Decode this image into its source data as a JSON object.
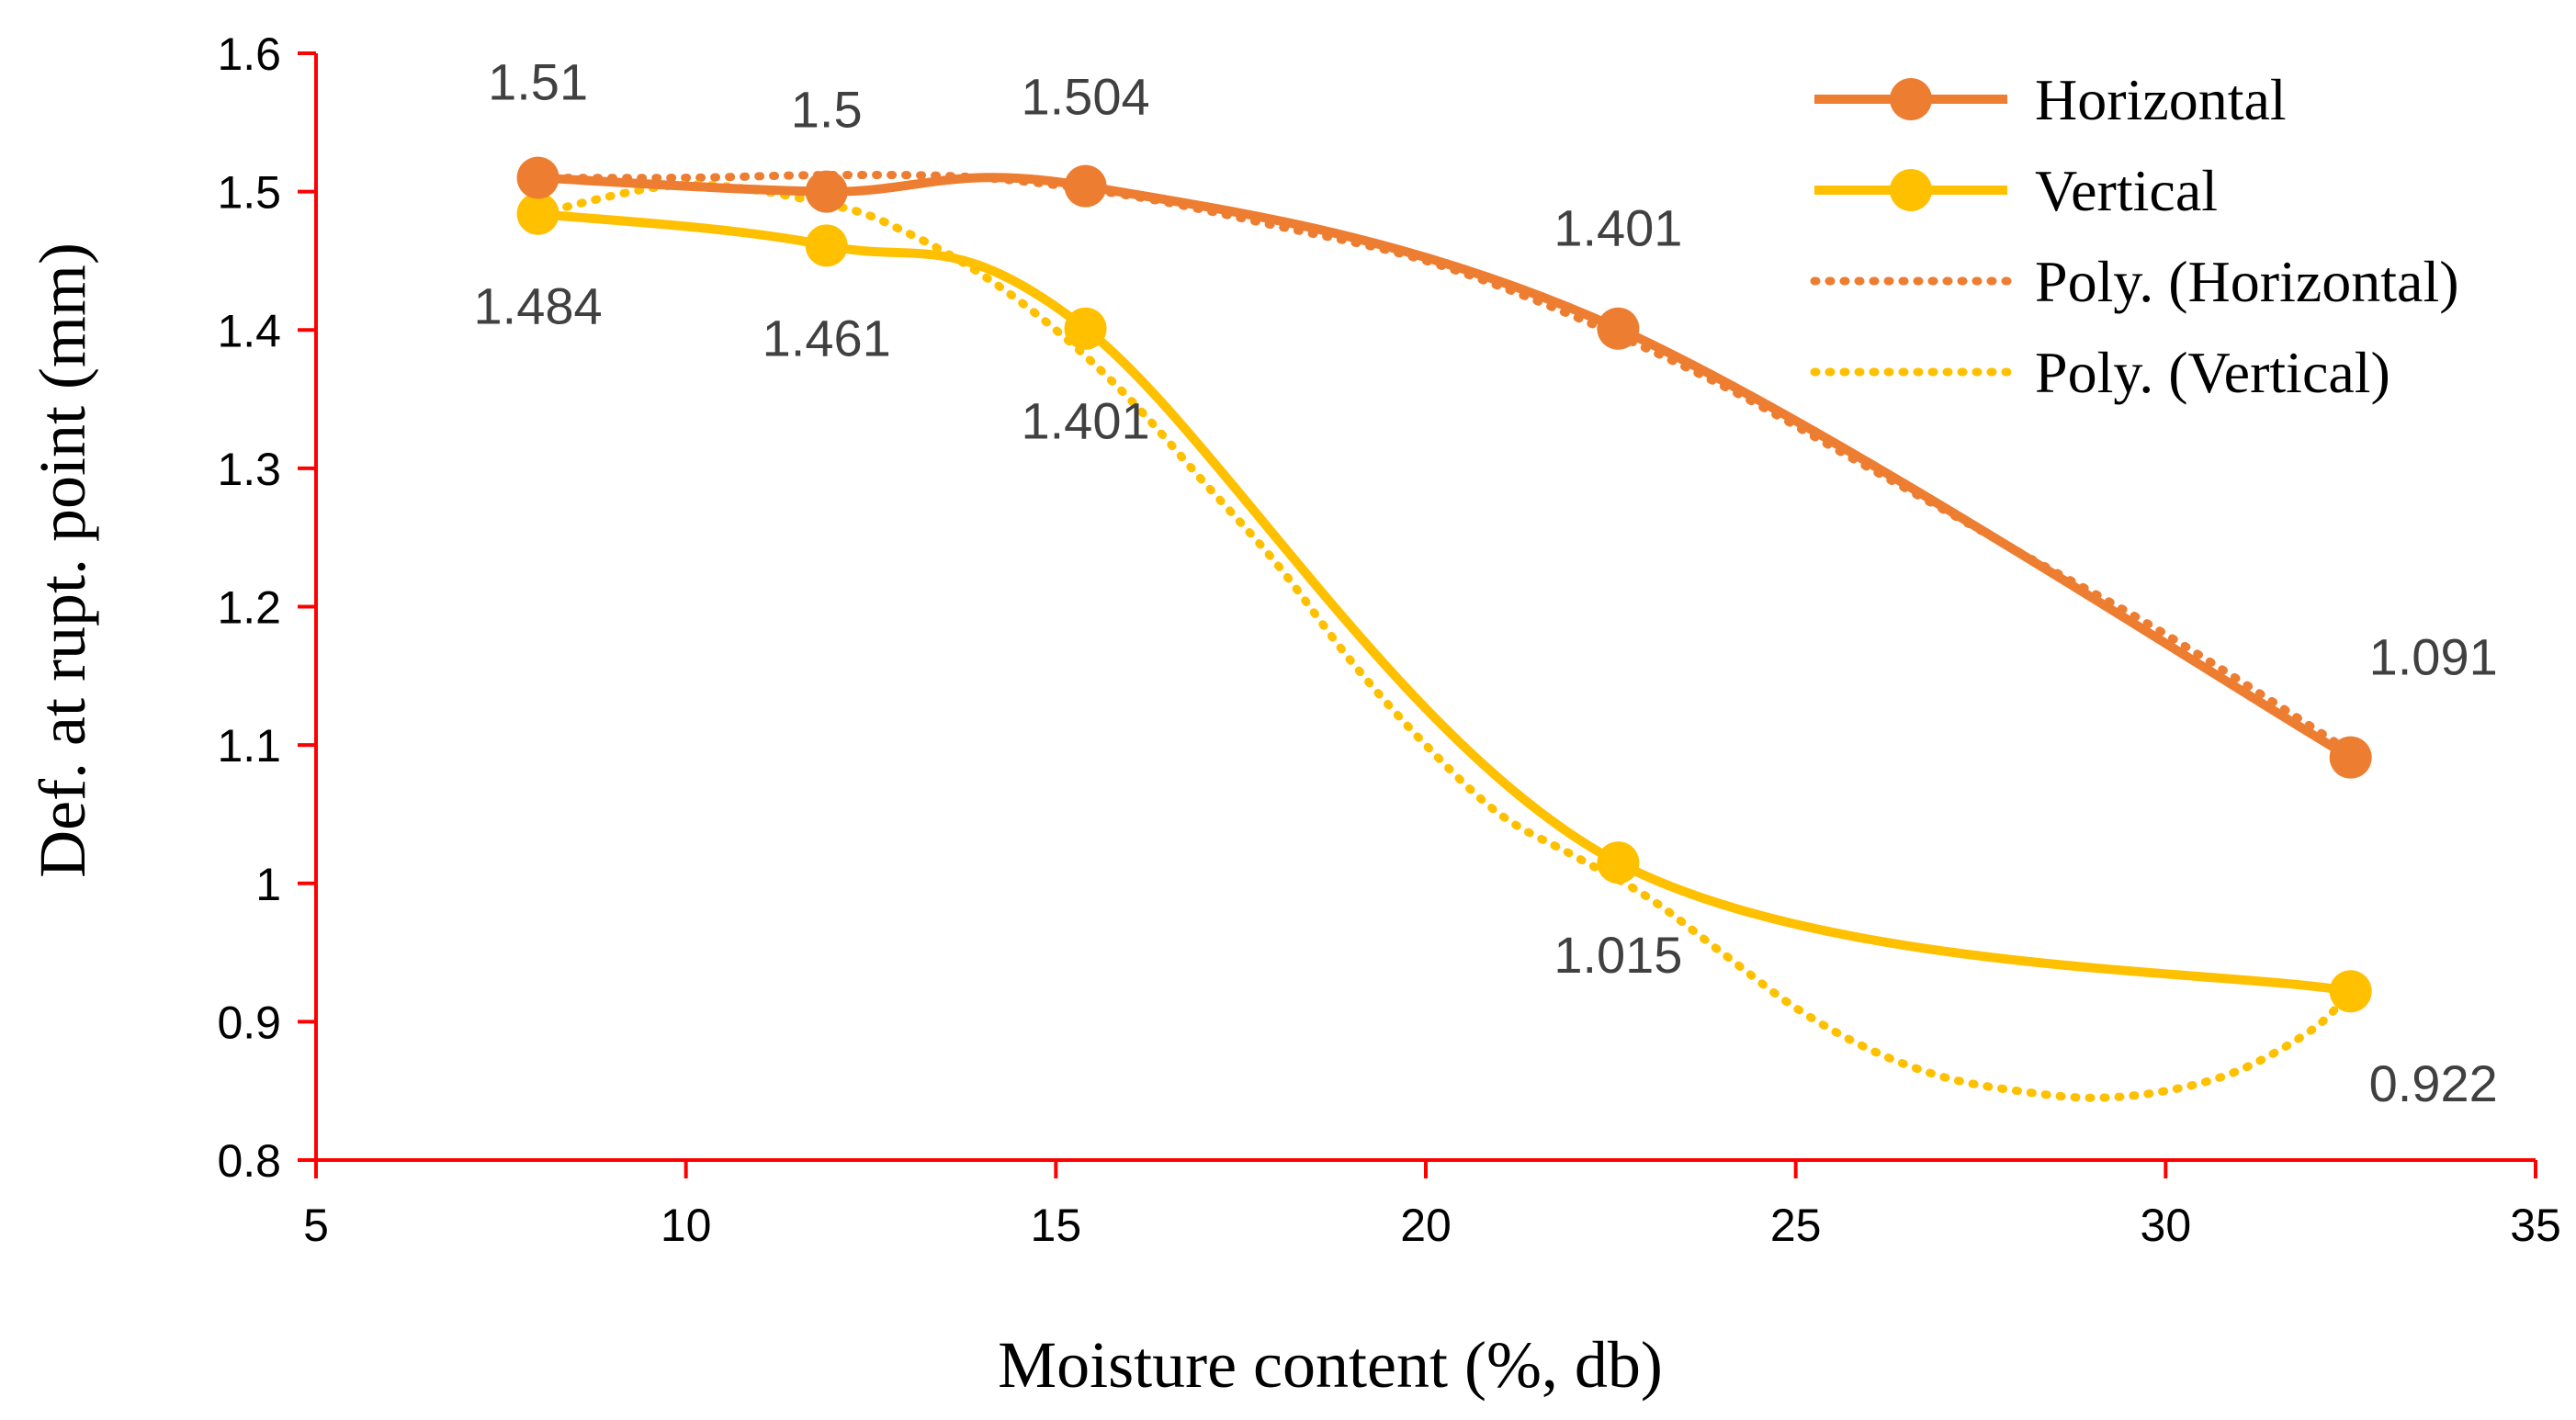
{
  "chart_data": {
    "type": "line",
    "title": "",
    "xlabel": "Moisture content (%, db)",
    "ylabel": "Def. at rupt. point (mm)",
    "xlim": [
      5,
      35
    ],
    "ylim": [
      0.8,
      1.6
    ],
    "xticks": [
      "5",
      "10",
      "15",
      "20",
      "25",
      "30",
      "35"
    ],
    "yticks": [
      "0.8",
      "0.9",
      "1",
      "1.1",
      "1.2",
      "1.3",
      "1.4",
      "1.5",
      "1.6"
    ],
    "axis_color": "#ff0000",
    "legend_position": "top-right",
    "grid": false,
    "x": [
      8,
      11.9,
      15.4,
      22.6,
      32.5
    ],
    "series": [
      {
        "name": "Horizontal",
        "color": "#ed7d31",
        "values": [
          1.51,
          1.5,
          1.504,
          1.401,
          1.091
        ],
        "labels": [
          "1.51",
          "1.5",
          "1.504",
          "1.401",
          "1.091"
        ],
        "label_position": "above"
      },
      {
        "name": "Vertical",
        "color": "#ffc000",
        "values": [
          1.484,
          1.461,
          1.401,
          1.015,
          0.922
        ],
        "labels": [
          "1.484",
          "1.461",
          "1.401",
          "1.015",
          "0.922"
        ],
        "label_position": "below"
      }
    ],
    "trendlines": [
      {
        "name": "Poly. (Horizontal)",
        "color": "#ed7d31",
        "style": "dotted",
        "x": [
          8,
          10,
          12,
          14,
          16,
          18,
          20,
          22,
          24,
          26,
          28,
          30,
          32.5
        ],
        "values": [
          1.51,
          1.51,
          1.512,
          1.51,
          1.497,
          1.475,
          1.45,
          1.41,
          1.36,
          1.3,
          1.24,
          1.18,
          1.095
        ]
      },
      {
        "name": "Poly. (Vertical)",
        "color": "#ffc000",
        "style": "dotted",
        "x": [
          8,
          10,
          12,
          13,
          14,
          15,
          16,
          17,
          18,
          19,
          20,
          21,
          22,
          23,
          24,
          25,
          26,
          27,
          28,
          29,
          30,
          31,
          32,
          32.5
        ],
        "values": [
          1.484,
          1.505,
          1.49,
          1.47,
          1.44,
          1.4,
          1.35,
          1.29,
          1.23,
          1.16,
          1.1,
          1.05,
          1.02,
          0.99,
          0.95,
          0.91,
          0.88,
          0.86,
          0.85,
          0.845,
          0.85,
          0.865,
          0.895,
          0.922
        ]
      }
    ]
  }
}
